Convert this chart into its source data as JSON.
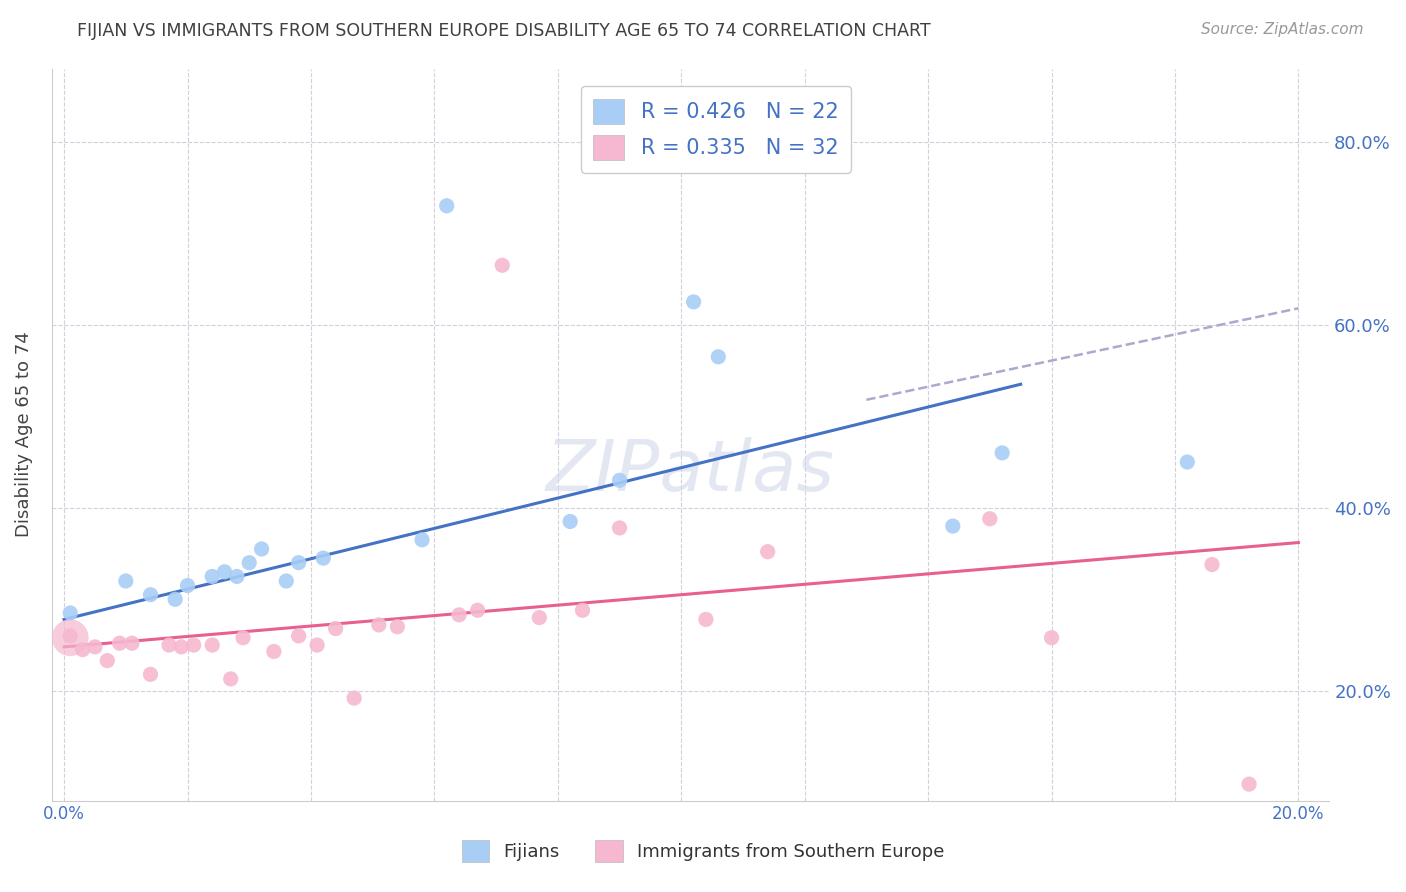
{
  "title": "FIJIAN VS IMMIGRANTS FROM SOUTHERN EUROPE DISABILITY AGE 65 TO 74 CORRELATION CHART",
  "source": "Source: ZipAtlas.com",
  "ylabel": "Disability Age 65 to 74",
  "xlim": [
    -0.002,
    0.205
  ],
  "ylim": [
    0.08,
    0.88
  ],
  "xticks": [
    0.0,
    0.02,
    0.04,
    0.06,
    0.08,
    0.1,
    0.12,
    0.14,
    0.16,
    0.18,
    0.2
  ],
  "yticks": [
    0.2,
    0.4,
    0.6,
    0.8
  ],
  "ytick_labels": [
    "20.0%",
    "40.0%",
    "60.0%",
    "80.0%"
  ],
  "xtick_labels": [
    "0.0%",
    "",
    "",
    "",
    "",
    "",
    "",
    "",
    "",
    "",
    "20.0%"
  ],
  "blue_R": 0.426,
  "blue_N": 22,
  "pink_R": 0.335,
  "pink_N": 32,
  "blue_color": "#a8cef5",
  "pink_color": "#f5b8d0",
  "blue_line_color": "#4472c4",
  "pink_line_color": "#e86090",
  "dashed_line_color": "#aaaacc",
  "legend_label_blue": "Fijians",
  "legend_label_pink": "Immigrants from Southern Europe",
  "blue_points_x": [
    0.001,
    0.01,
    0.014,
    0.018,
    0.02,
    0.024,
    0.026,
    0.028,
    0.03,
    0.032,
    0.036,
    0.038,
    0.042,
    0.058,
    0.062,
    0.082,
    0.09,
    0.102,
    0.106,
    0.144,
    0.152,
    0.182
  ],
  "blue_points_y": [
    0.285,
    0.32,
    0.305,
    0.3,
    0.315,
    0.325,
    0.33,
    0.325,
    0.34,
    0.355,
    0.32,
    0.34,
    0.345,
    0.365,
    0.73,
    0.385,
    0.43,
    0.625,
    0.565,
    0.38,
    0.46,
    0.45
  ],
  "pink_points_x": [
    0.001,
    0.003,
    0.005,
    0.007,
    0.009,
    0.011,
    0.014,
    0.017,
    0.019,
    0.021,
    0.024,
    0.027,
    0.029,
    0.034,
    0.038,
    0.041,
    0.044,
    0.047,
    0.051,
    0.054,
    0.064,
    0.067,
    0.071,
    0.077,
    0.084,
    0.09,
    0.104,
    0.114,
    0.15,
    0.16,
    0.186,
    0.192
  ],
  "pink_points_y": [
    0.26,
    0.245,
    0.248,
    0.233,
    0.252,
    0.252,
    0.218,
    0.25,
    0.248,
    0.25,
    0.25,
    0.213,
    0.258,
    0.243,
    0.26,
    0.25,
    0.268,
    0.192,
    0.272,
    0.27,
    0.283,
    0.288,
    0.665,
    0.28,
    0.288,
    0.378,
    0.278,
    0.352,
    0.388,
    0.258,
    0.338,
    0.098
  ],
  "big_pink_x": [
    0.001
  ],
  "big_pink_y": [
    0.258
  ],
  "blue_line_x": [
    0.0,
    0.155
  ],
  "blue_line_y": [
    0.278,
    0.535
  ],
  "pink_line_x": [
    0.0,
    0.2
  ],
  "pink_line_y": [
    0.248,
    0.362
  ],
  "dashed_line_x": [
    0.13,
    0.2
  ],
  "dashed_line_y": [
    0.518,
    0.618
  ],
  "background_color": "#ffffff",
  "grid_color": "#d0d0e0",
  "title_color": "#404040",
  "tick_color": "#4472c4",
  "marker_size": 120,
  "big_marker_size": 700
}
